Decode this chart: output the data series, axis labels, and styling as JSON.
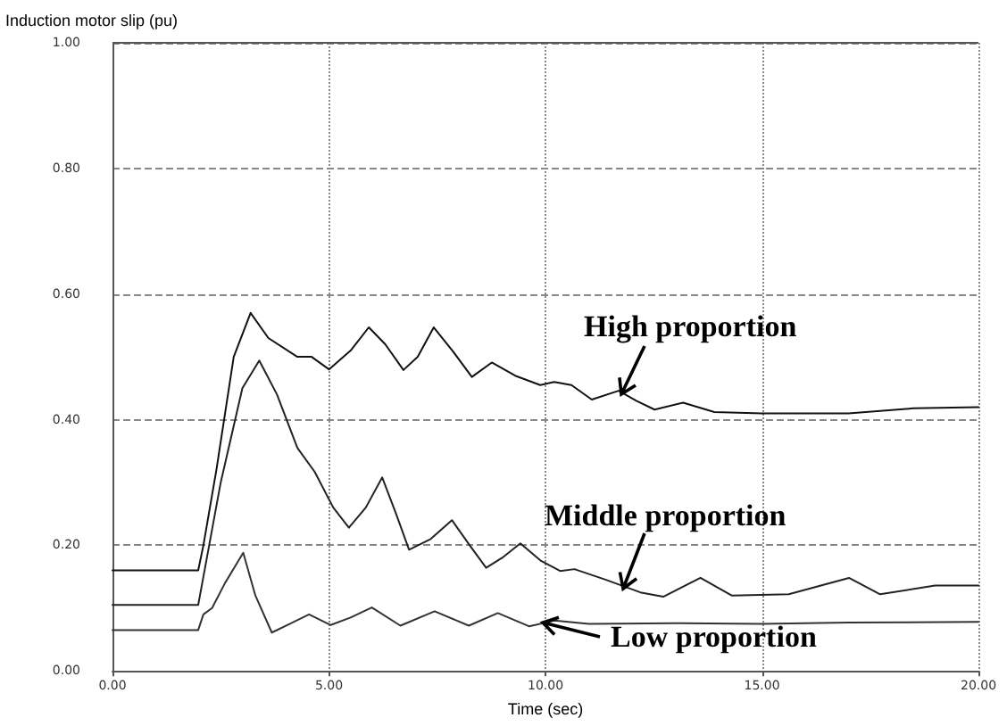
{
  "chart_data": {
    "type": "line",
    "xlabel": "Time (sec)",
    "ylabel": "Induction motor slip (pu)",
    "xlim": [
      0,
      20
    ],
    "ylim": [
      0,
      1
    ],
    "xticks": [
      {
        "value": 0,
        "label": "0.00"
      },
      {
        "value": 5,
        "label": "5.00"
      },
      {
        "value": 10,
        "label": "10.00"
      },
      {
        "value": 15,
        "label": "15.00"
      },
      {
        "value": 20,
        "label": "20.00"
      }
    ],
    "yticks": [
      {
        "value": 0,
        "label": "0.00"
      },
      {
        "value": 0.2,
        "label": "0.20"
      },
      {
        "value": 0.4,
        "label": "0.40"
      },
      {
        "value": 0.6,
        "label": "0.60"
      },
      {
        "value": 0.8,
        "label": "0.80"
      },
      {
        "value": 1,
        "label": "1.00"
      }
    ],
    "grid": true,
    "marker": "none",
    "line_style": "solid",
    "series": [
      {
        "color": "#111111",
        "x": [
          0,
          1.98,
          2.1,
          2.4,
          2.8,
          3.19,
          3.6,
          4.27,
          4.6,
          5.0,
          5.5,
          5.92,
          6.3,
          6.72,
          7.05,
          7.42,
          7.85,
          8.3,
          8.76,
          9.3,
          9.88,
          10.2,
          10.6,
          11.07,
          11.69,
          12.1,
          12.52,
          13.18,
          13.9,
          15,
          17,
          18.5,
          20
        ],
        "values": [
          0.16,
          0.16,
          0.2,
          0.32,
          0.5,
          0.57,
          0.53,
          0.5,
          0.5,
          0.48,
          0.51,
          0.547,
          0.52,
          0.479,
          0.5,
          0.547,
          0.51,
          0.468,
          0.491,
          0.47,
          0.455,
          0.46,
          0.455,
          0.432,
          0.446,
          0.43,
          0.416,
          0.427,
          0.412,
          0.41,
          0.41,
          0.418,
          0.42
        ]
      },
      {
        "color": "#222222",
        "x": [
          0,
          1.98,
          2.1,
          2.5,
          3.0,
          3.39,
          3.8,
          4.27,
          4.67,
          5.1,
          5.46,
          5.85,
          6.23,
          6.55,
          6.85,
          7.35,
          7.84,
          8.25,
          8.63,
          9.0,
          9.42,
          9.9,
          10.34,
          10.67,
          11.4,
          12.19,
          12.72,
          13.58,
          14.3,
          15.62,
          17.01,
          17.73,
          19,
          20
        ],
        "values": [
          0.105,
          0.105,
          0.15,
          0.3,
          0.45,
          0.494,
          0.44,
          0.355,
          0.317,
          0.26,
          0.228,
          0.26,
          0.308,
          0.25,
          0.193,
          0.21,
          0.24,
          0.2,
          0.164,
          0.18,
          0.203,
          0.175,
          0.159,
          0.162,
          0.145,
          0.125,
          0.118,
          0.148,
          0.12,
          0.122,
          0.148,
          0.122,
          0.136,
          0.136
        ]
      },
      {
        "color": "#333333",
        "x": [
          0,
          1.98,
          2.1,
          2.3,
          2.6,
          3.02,
          3.3,
          3.68,
          4.1,
          4.54,
          5.04,
          5.5,
          5.99,
          6.65,
          7.44,
          8.23,
          8.9,
          9.62,
          10.21,
          11,
          13,
          15,
          17,
          20
        ],
        "values": [
          0.065,
          0.065,
          0.09,
          0.1,
          0.14,
          0.188,
          0.12,
          0.061,
          0.075,
          0.09,
          0.073,
          0.085,
          0.101,
          0.072,
          0.095,
          0.072,
          0.092,
          0.071,
          0.08,
          0.075,
          0.076,
          0.075,
          0.077,
          0.078
        ]
      }
    ],
    "annotations": [
      "High proportion",
      "Middle proportion",
      "Low proportion"
    ]
  }
}
